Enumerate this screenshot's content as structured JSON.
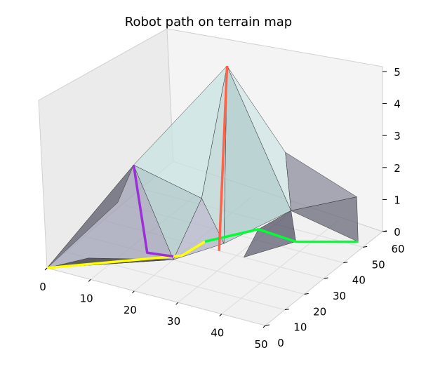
{
  "chart_data": {
    "type": "surface3d",
    "title": "Robot path on terrain map",
    "xlabel": "",
    "ylabel": "",
    "zlabel": "",
    "grid": true,
    "x_ticks": [
      "0",
      "10",
      "20",
      "30",
      "40",
      "50"
    ],
    "y_ticks": [
      "0",
      "10",
      "20",
      "30",
      "40",
      "50",
      "60"
    ],
    "z_ticks": [
      "0",
      "1",
      "2",
      "3",
      "4",
      "5"
    ],
    "xlim": [
      0,
      50
    ],
    "ylim": [
      0,
      60
    ],
    "zlim": [
      0,
      5
    ],
    "terrain_peak": {
      "x": 22,
      "y": 43,
      "z": 5
    },
    "path_segments": [
      {
        "color": "#ffff00",
        "points": [
          [
            0,
            0,
            0
          ],
          [
            22,
            20,
            0.2
          ],
          [
            25,
            25,
            0.5
          ]
        ]
      },
      {
        "color": "#00ff33",
        "points": [
          [
            25,
            25,
            0.5
          ],
          [
            35,
            30,
            1
          ],
          [
            40,
            38,
            0.4
          ],
          [
            48,
            52,
            0
          ]
        ]
      },
      {
        "color": "#ff6347",
        "points": [
          [
            26,
            30,
            0
          ],
          [
            22,
            43,
            5
          ]
        ]
      },
      {
        "color": "#9b30d9",
        "points": [
          [
            10,
            22,
            2.5
          ],
          [
            14,
            20,
            0
          ],
          [
            20,
            20,
            0.1
          ]
        ]
      }
    ],
    "colors": {
      "surface_light": "#c8e3e3",
      "surface_mid": "#9fa0b5",
      "surface_dark": "#505064",
      "pane": "#f2f2f2",
      "grid": "#dcdcdc"
    }
  }
}
